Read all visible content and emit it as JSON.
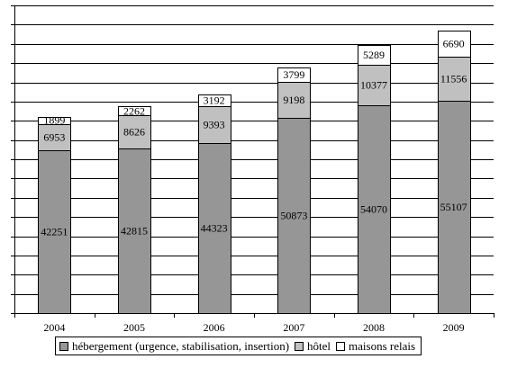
{
  "chart_data": {
    "type": "bar",
    "stacked": true,
    "categories": [
      "2004",
      "2005",
      "2006",
      "2007",
      "2008",
      "2009"
    ],
    "series": [
      {
        "name": "hébergement (urgence, stabilisation, insertion)",
        "color": "#969696",
        "values": [
          42251,
          42815,
          44323,
          50873,
          54070,
          55107
        ]
      },
      {
        "name": "hôtel",
        "color": "#c0c0c0",
        "values": [
          6953,
          8626,
          9393,
          9198,
          10377,
          11556
        ]
      },
      {
        "name": "maisons relais",
        "color": "#ffffff",
        "values": [
          1899,
          2262,
          3192,
          3799,
          5289,
          6690
        ]
      }
    ],
    "ylim": [
      0,
      80000
    ],
    "y_gridline_step": 5000,
    "y_tick_labels_shown": false,
    "grid": true,
    "legend_position": "bottom",
    "title": "",
    "xlabel": "",
    "ylabel": ""
  }
}
